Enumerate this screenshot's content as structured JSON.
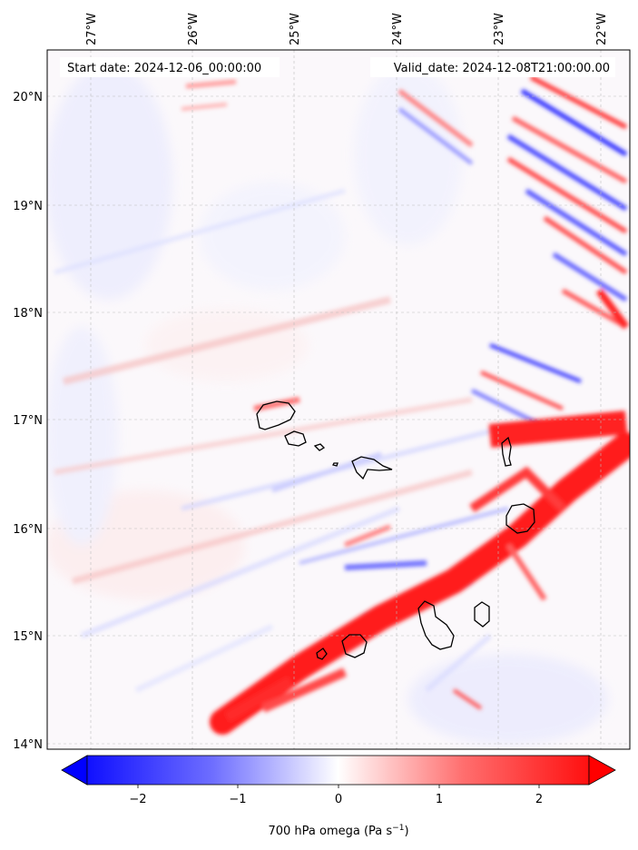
{
  "map": {
    "start_label": "Start date: 2024-12-06_00:00:00",
    "valid_label": "Valid_date: 2024-12-08T21:00:00.00",
    "lon_labels": [
      "27°W",
      "26°W",
      "25°W",
      "24°W",
      "23°W",
      "22°W"
    ],
    "lat_labels": [
      "20°N",
      "19°N",
      "18°N",
      "17°N",
      "16°N",
      "15°N",
      "14°N"
    ],
    "lon_range": [
      -27.35,
      -21.73
    ],
    "lat_range": [
      13.93,
      20.42
    ],
    "gridlines": true,
    "field": "700 hPa omega",
    "colormap": "bwr",
    "islands": [
      "Santo Antão",
      "São Vicente",
      "Santa Luzia",
      "Branco",
      "São Nicolau",
      "Sal",
      "Boa Vista",
      "Maio",
      "Santiago",
      "Fogo",
      "Brava"
    ]
  },
  "colorbar": {
    "label_main": "700 hPa omega (Pa s",
    "label_exp": "−1",
    "label_tail": ")",
    "tick_labels": [
      "−2",
      "−1",
      "0",
      "1",
      "2"
    ],
    "range": [
      -2.5,
      2.5
    ],
    "extend": "both",
    "color_low": "#0000ff",
    "color_mid": "#ffffff",
    "color_high": "#ff0000"
  }
}
